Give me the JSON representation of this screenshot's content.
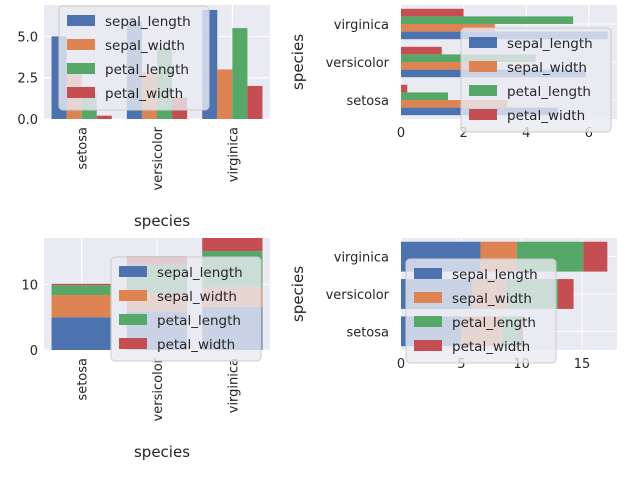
{
  "colors": {
    "axes_bg": "#EAEAF2",
    "grid": "#FFFFFF",
    "sepal_length": "#4C72B0",
    "sepal_width": "#DD8452",
    "petal_length": "#55A868",
    "petal_width": "#C44E52",
    "legend_bg": "#EAEAF2",
    "legend_edge": "#CCCCCC"
  },
  "chart_data": [
    {
      "type": "bar",
      "orientation": "vertical",
      "stacked": false,
      "title": "",
      "xlabel": "species",
      "ylabel": "",
      "ylim": [
        0,
        6.9
      ],
      "yticks": [
        "0.0",
        "2.5",
        "5.0"
      ],
      "ytick_values": [
        0,
        2.5,
        5.0
      ],
      "categories": [
        "setosa",
        "versicolor",
        "virginica"
      ],
      "series": [
        {
          "name": "sepal_length",
          "values": [
            5.0,
            5.9,
            6.6
          ]
        },
        {
          "name": "sepal_width",
          "values": [
            3.4,
            2.8,
            3.0
          ]
        },
        {
          "name": "petal_length",
          "values": [
            1.5,
            4.3,
            5.5
          ]
        },
        {
          "name": "petal_width",
          "values": [
            0.2,
            1.3,
            2.0
          ]
        }
      ],
      "legend": "top-left",
      "grid": true
    },
    {
      "type": "bar",
      "orientation": "horizontal",
      "stacked": false,
      "title": "",
      "xlabel": "",
      "ylabel": "species",
      "xlim": [
        0,
        6.9
      ],
      "xticks": [
        "0",
        "2",
        "4",
        "6"
      ],
      "xtick_values": [
        0,
        2,
        4,
        6
      ],
      "categories": [
        "setosa",
        "versicolor",
        "virginica"
      ],
      "series": [
        {
          "name": "sepal_length",
          "values": [
            5.0,
            5.9,
            6.6
          ]
        },
        {
          "name": "sepal_width",
          "values": [
            3.4,
            2.8,
            3.0
          ]
        },
        {
          "name": "petal_length",
          "values": [
            1.5,
            4.3,
            5.5
          ]
        },
        {
          "name": "petal_width",
          "values": [
            0.2,
            1.3,
            2.0
          ]
        }
      ],
      "legend": "top-right",
      "grid": true
    },
    {
      "type": "bar",
      "orientation": "vertical",
      "stacked": true,
      "title": "",
      "xlabel": "species",
      "ylabel": "",
      "ylim": [
        0,
        17.1
      ],
      "yticks": [
        "0",
        "10"
      ],
      "ytick_values": [
        0,
        10
      ],
      "categories": [
        "setosa",
        "versicolor",
        "virginica"
      ],
      "series": [
        {
          "name": "sepal_length",
          "values": [
            5.0,
            5.9,
            6.6
          ]
        },
        {
          "name": "sepal_width",
          "values": [
            3.4,
            2.8,
            3.0
          ]
        },
        {
          "name": "petal_length",
          "values": [
            1.5,
            4.3,
            5.5
          ]
        },
        {
          "name": "petal_width",
          "values": [
            0.2,
            1.3,
            2.0
          ]
        }
      ],
      "legend": "top-right",
      "grid": true
    },
    {
      "type": "bar",
      "orientation": "horizontal",
      "stacked": true,
      "title": "",
      "xlabel": "",
      "ylabel": "species",
      "xlim": [
        0,
        17.9
      ],
      "xticks": [
        "0",
        "5",
        "10",
        "15"
      ],
      "xtick_values": [
        0,
        5,
        10,
        15
      ],
      "categories": [
        "setosa",
        "versicolor",
        "virginica"
      ],
      "series": [
        {
          "name": "sepal_length",
          "values": [
            5.0,
            5.9,
            6.6
          ]
        },
        {
          "name": "sepal_width",
          "values": [
            3.4,
            2.8,
            3.0
          ]
        },
        {
          "name": "petal_length",
          "values": [
            1.5,
            4.3,
            5.5
          ]
        },
        {
          "name": "petal_width",
          "values": [
            0.2,
            1.3,
            2.0
          ]
        }
      ],
      "legend": "bottom-left",
      "grid": true
    }
  ]
}
